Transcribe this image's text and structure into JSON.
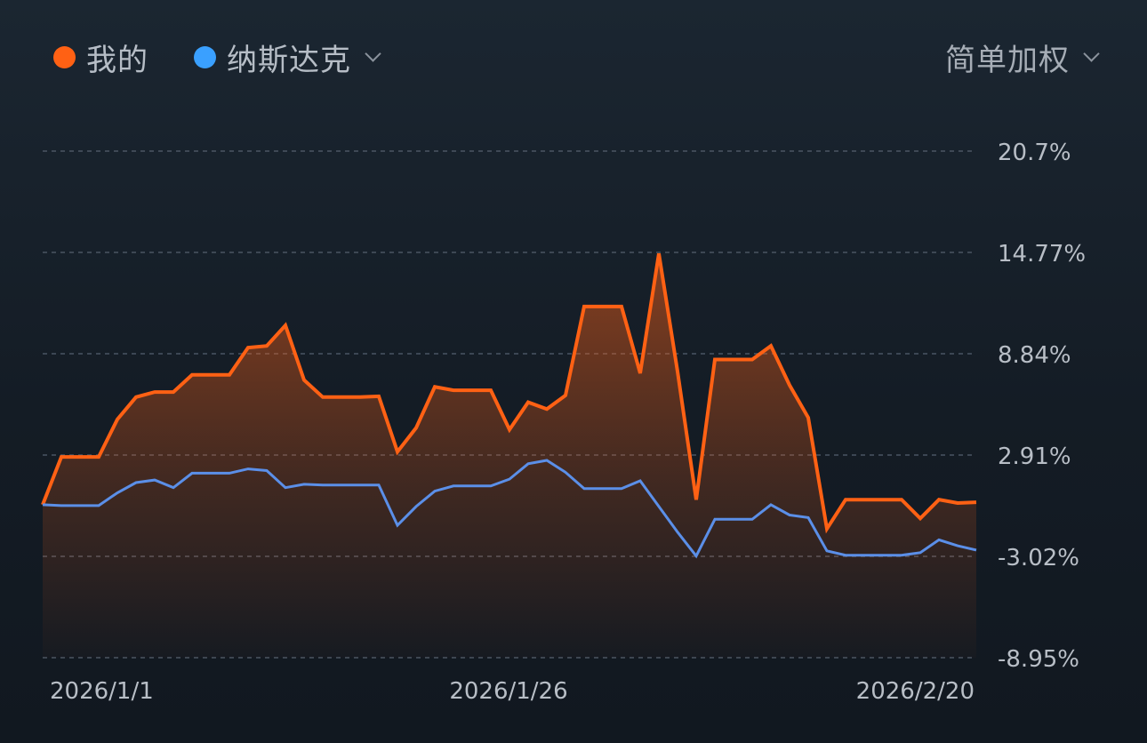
{
  "legend": {
    "mine_label": "我的",
    "benchmark_label": "纳斯达克",
    "weight_mode": "简单加权"
  },
  "colors": {
    "mine": "#ff6114",
    "benchmark": "#3aa0ff",
    "benchmark_line": "#5b8fe8",
    "grid": "#4a5563",
    "tick_text": "#b8bec6"
  },
  "icons": {
    "benchmark_dropdown": "chevron-down-icon",
    "weight_dropdown": "chevron-down-icon"
  },
  "chart_data": {
    "type": "line",
    "yaxis": {
      "position": "right",
      "ticks": [
        "20.7%",
        "14.77%",
        "8.84%",
        "2.91%",
        "-3.02%",
        "-8.95%"
      ],
      "tick_values": [
        20.7,
        14.77,
        8.84,
        2.91,
        -3.02,
        -8.95
      ],
      "range": [
        -8.95,
        20.7
      ]
    },
    "xaxis": {
      "tick_labels": [
        "2026/1/1",
        "2026/1/26",
        "2026/2/20"
      ],
      "tick_index": [
        0,
        25,
        50
      ]
    },
    "grid": true,
    "series": [
      {
        "name": "我的",
        "area_fill": true,
        "values": [
          0.0,
          2.8,
          2.8,
          2.8,
          5.0,
          6.3,
          6.6,
          6.6,
          7.6,
          7.6,
          7.6,
          9.2,
          9.3,
          10.5,
          7.3,
          6.3,
          6.3,
          6.3,
          6.35,
          3.1,
          4.5,
          6.9,
          6.7,
          6.7,
          6.7,
          4.4,
          6.0,
          5.6,
          6.4,
          11.6,
          11.6,
          11.6,
          7.7,
          14.7,
          7.8,
          0.3,
          8.5,
          8.5,
          8.5,
          9.3,
          7.0,
          5.1,
          -1.4,
          0.3,
          0.3,
          0.3,
          0.3,
          -0.8,
          0.3,
          0.1,
          0.15
        ]
      },
      {
        "name": "纳斯达克",
        "area_fill": false,
        "values": [
          0.0,
          -0.05,
          -0.05,
          -0.05,
          0.7,
          1.3,
          1.45,
          1.0,
          1.85,
          1.85,
          1.85,
          2.1,
          2.0,
          1.0,
          1.2,
          1.15,
          1.15,
          1.15,
          1.15,
          -1.2,
          -0.1,
          0.8,
          1.1,
          1.1,
          1.1,
          1.5,
          2.4,
          2.6,
          1.9,
          0.95,
          0.95,
          0.95,
          1.4,
          -0.1,
          -1.6,
          -3.0,
          -0.85,
          -0.85,
          -0.85,
          0.0,
          -0.6,
          -0.75,
          -2.7,
          -2.95,
          -2.95,
          -2.95,
          -2.95,
          -2.8,
          -2.05,
          -2.4,
          -2.65
        ]
      }
    ]
  }
}
